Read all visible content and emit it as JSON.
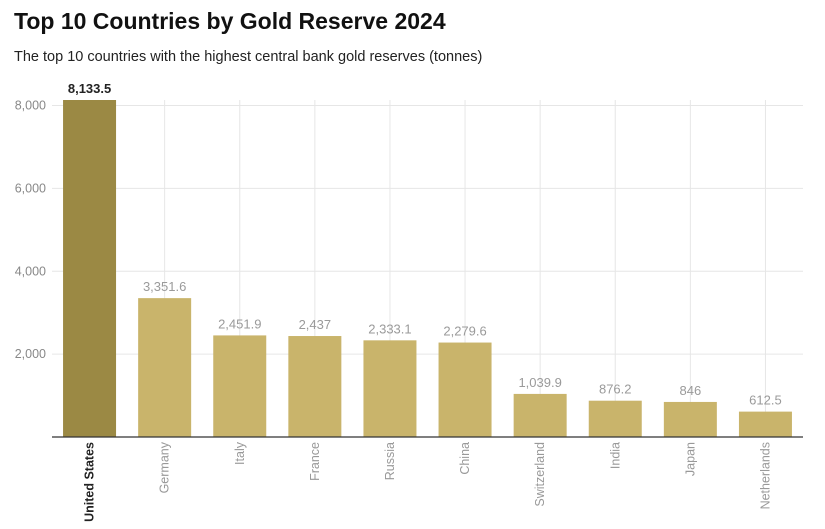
{
  "chart_data": {
    "type": "bar",
    "title": "Top 10 Countries by Gold Reserve 2024",
    "subtitle": "The top 10 countries with the highest central bank gold reserves (tonnes)",
    "xlabel": "",
    "ylabel": "",
    "categories": [
      "United States",
      "Germany",
      "Italy",
      "France",
      "Russia",
      "China",
      "Switzerland",
      "India",
      "Japan",
      "Netherlands"
    ],
    "values": [
      8133.5,
      3351.6,
      2451.9,
      2437,
      2333.1,
      2279.6,
      1039.9,
      876.2,
      846,
      612.5
    ],
    "data_labels": [
      "8,133.5",
      "3,351.6",
      "2,451.9",
      "2,437",
      "2,333.1",
      "2,279.6",
      "1,039.9",
      "876.2",
      "846",
      "612.5"
    ],
    "yticks": [
      2000,
      4000,
      6000,
      8000
    ],
    "ytick_labels": [
      "2,000",
      "4,000",
      "6,000",
      "8,000"
    ],
    "ylim": [
      0,
      8133.5
    ],
    "grid": true,
    "highlight_index": 0,
    "colors": {
      "bar": "#c9b46b",
      "highlight": "#9b8944",
      "grid": "#e6e6e6",
      "axis": "#333333"
    }
  }
}
